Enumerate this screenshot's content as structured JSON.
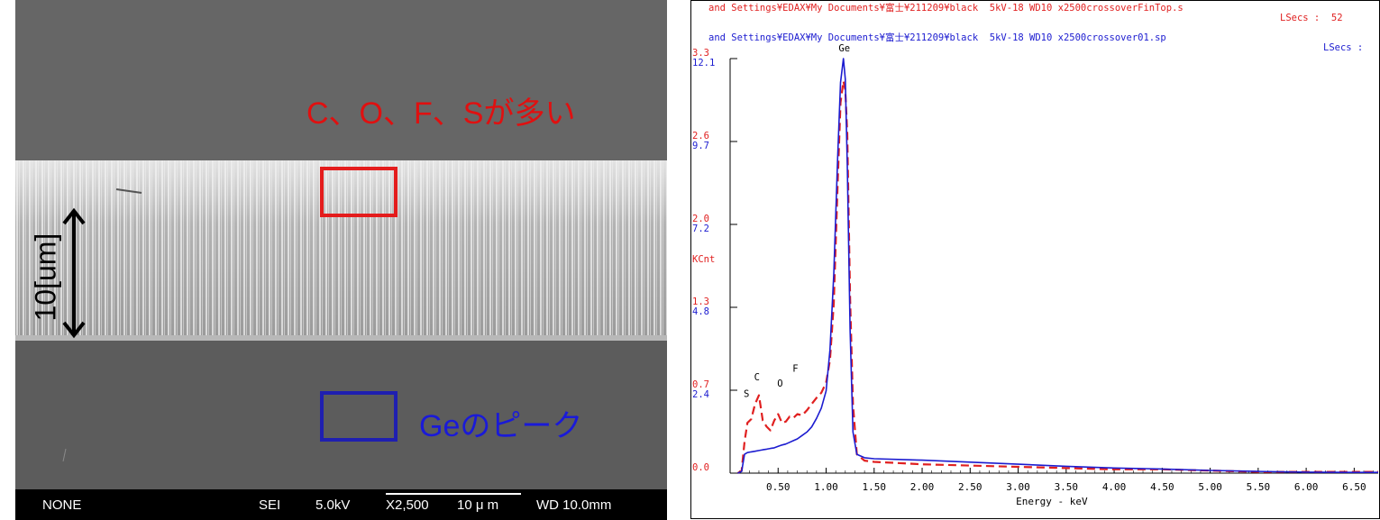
{
  "sem": {
    "annotation_red": "C、O、F、Sが多い",
    "annotation_blue": "Geのピーク",
    "scale_label": "10[um]",
    "info_bar": {
      "mode": "NONE",
      "detector": "SEI",
      "voltage": "5.0kV",
      "magnification": "X2,500",
      "scale": "10 μ m",
      "wd": "WD 10.0mm"
    },
    "colors": {
      "red_box": "#e41c1c",
      "blue_box": "#1f1fb0"
    }
  },
  "edx": {
    "header_red_line1": "and Settings¥EDAX¥My Documents¥富士¥211209¥black  5kV-18 WD10 x2500crossoverFinTop.s",
    "header_red_line2": "LSecs :  52",
    "header_blue_line1": "and Settings¥EDAX¥My Documents¥富士¥211209¥black  5kV-18 WD10 x2500crossover01.sp",
    "header_blue_line2": "LSecs :",
    "kcnt_label": "KCnt"
  },
  "chart_data": {
    "type": "line",
    "xlabel": "Energy - keV",
    "ylabel": "KCnt",
    "xlim": [
      0.0,
      6.75
    ],
    "x_ticks": [
      "0.50",
      "1.00",
      "1.50",
      "2.00",
      "2.50",
      "3.00",
      "3.50",
      "4.00",
      "4.50",
      "5.00",
      "5.50",
      "6.00",
      "6.50"
    ],
    "y_ticks_red": [
      "0.0",
      "0.7",
      "1.3",
      "2.0",
      "2.6",
      "3.3"
    ],
    "y_ticks_blue": [
      "2.4",
      "4.8",
      "7.2",
      "9.7",
      "12.1"
    ],
    "red_axis_ylim": [
      0,
      3.3
    ],
    "blue_axis_ylim": [
      0,
      12.1
    ],
    "peak_labels": [
      {
        "label": "S",
        "x": 0.17,
        "y_red": 0.55
      },
      {
        "label": "C",
        "x": 0.28,
        "y_red": 0.68
      },
      {
        "label": "O",
        "x": 0.52,
        "y_red": 0.63
      },
      {
        "label": "F",
        "x": 0.68,
        "y_red": 0.75
      },
      {
        "label": "Ge",
        "x": 1.19,
        "y_red": 3.3
      }
    ],
    "series": [
      {
        "name": "crossoverFinTop",
        "color": "#e02020",
        "dashed": true,
        "axis": "red",
        "x": [
          0.08,
          0.12,
          0.15,
          0.18,
          0.22,
          0.26,
          0.3,
          0.34,
          0.38,
          0.42,
          0.46,
          0.5,
          0.54,
          0.58,
          0.62,
          0.66,
          0.7,
          0.75,
          0.8,
          0.85,
          0.9,
          0.95,
          1.0,
          1.04,
          1.08,
          1.12,
          1.15,
          1.18,
          1.2,
          1.22,
          1.25,
          1.28,
          1.32,
          1.4,
          1.5,
          1.75,
          2.0,
          2.5,
          3.0,
          3.5,
          4.0,
          4.5,
          5.0,
          5.5,
          6.0,
          6.5,
          6.75
        ],
        "y": [
          0.0,
          0.02,
          0.25,
          0.4,
          0.43,
          0.55,
          0.62,
          0.42,
          0.37,
          0.34,
          0.42,
          0.47,
          0.4,
          0.41,
          0.45,
          0.44,
          0.47,
          0.46,
          0.5,
          0.55,
          0.6,
          0.64,
          0.72,
          0.9,
          1.35,
          2.3,
          2.95,
          3.12,
          3.05,
          2.7,
          1.4,
          0.55,
          0.15,
          0.1,
          0.09,
          0.08,
          0.07,
          0.06,
          0.05,
          0.04,
          0.03,
          0.03,
          0.02,
          0.01,
          0.01,
          0.01,
          0.01
        ]
      },
      {
        "name": "crossover01",
        "color": "#1c1cd0",
        "dashed": false,
        "axis": "blue",
        "x": [
          0.08,
          0.12,
          0.15,
          0.18,
          0.22,
          0.26,
          0.3,
          0.34,
          0.38,
          0.42,
          0.46,
          0.5,
          0.54,
          0.58,
          0.62,
          0.66,
          0.7,
          0.75,
          0.8,
          0.85,
          0.9,
          0.95,
          1.0,
          1.04,
          1.08,
          1.12,
          1.15,
          1.18,
          1.2,
          1.22,
          1.25,
          1.28,
          1.32,
          1.4,
          1.5,
          1.75,
          2.0,
          2.5,
          3.0,
          3.5,
          4.0,
          4.5,
          5.0,
          5.5,
          6.0,
          6.5,
          6.75
        ],
        "y": [
          0.0,
          0.05,
          0.55,
          0.6,
          0.62,
          0.64,
          0.66,
          0.68,
          0.7,
          0.72,
          0.74,
          0.78,
          0.82,
          0.85,
          0.9,
          0.95,
          1.0,
          1.1,
          1.2,
          1.35,
          1.6,
          1.9,
          2.4,
          3.6,
          5.8,
          9.2,
          11.4,
          12.1,
          11.5,
          9.0,
          4.2,
          1.2,
          0.55,
          0.45,
          0.42,
          0.4,
          0.38,
          0.32,
          0.26,
          0.2,
          0.15,
          0.12,
          0.08,
          0.05,
          0.03,
          0.02,
          0.02
        ]
      }
    ]
  }
}
